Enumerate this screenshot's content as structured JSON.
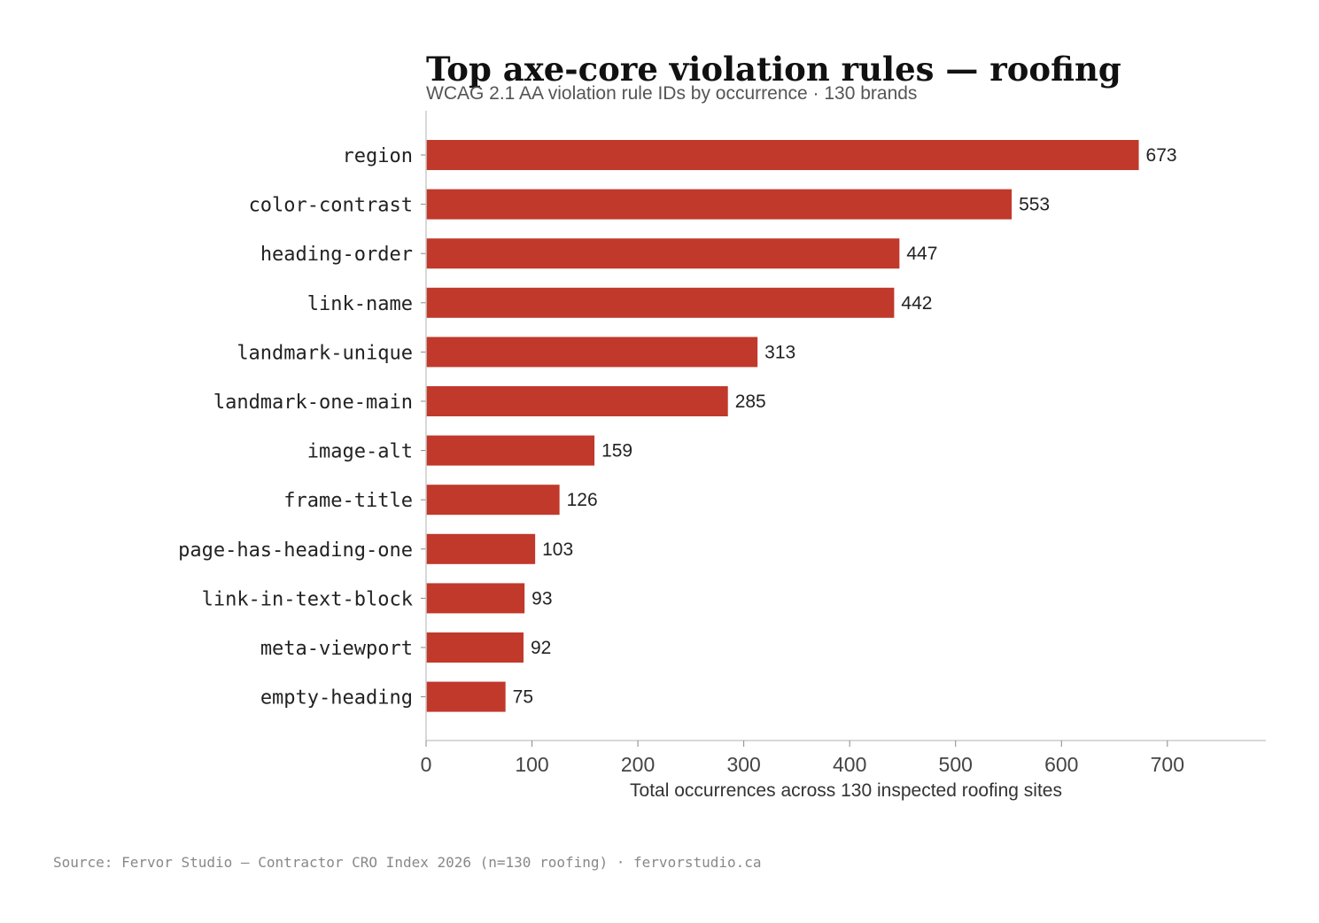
{
  "chart_data": {
    "type": "bar",
    "orientation": "horizontal",
    "title": "Top axe-core violation rules — roofing",
    "subtitle": "WCAG 2.1 AA violation rule IDs by occurrence · 130 brands",
    "xlabel": "Total occurrences across 130 inspected roofing sites",
    "ylabel": "",
    "xlim": [
      0,
      793
    ],
    "xticks": [
      0,
      100,
      200,
      300,
      400,
      500,
      600,
      700
    ],
    "categories": [
      "region",
      "color-contrast",
      "heading-order",
      "link-name",
      "landmark-unique",
      "landmark-one-main",
      "image-alt",
      "frame-title",
      "page-has-heading-one",
      "link-in-text-block",
      "meta-viewport",
      "empty-heading"
    ],
    "values": [
      673,
      553,
      447,
      442,
      313,
      285,
      159,
      126,
      103,
      93,
      92,
      75
    ],
    "bar_color": "#c0392b",
    "grid": false,
    "legend": "none",
    "source": "Source: Fervor Studio — Contractor CRO Index 2026 (n=130 roofing) · fervorstudio.ca"
  }
}
